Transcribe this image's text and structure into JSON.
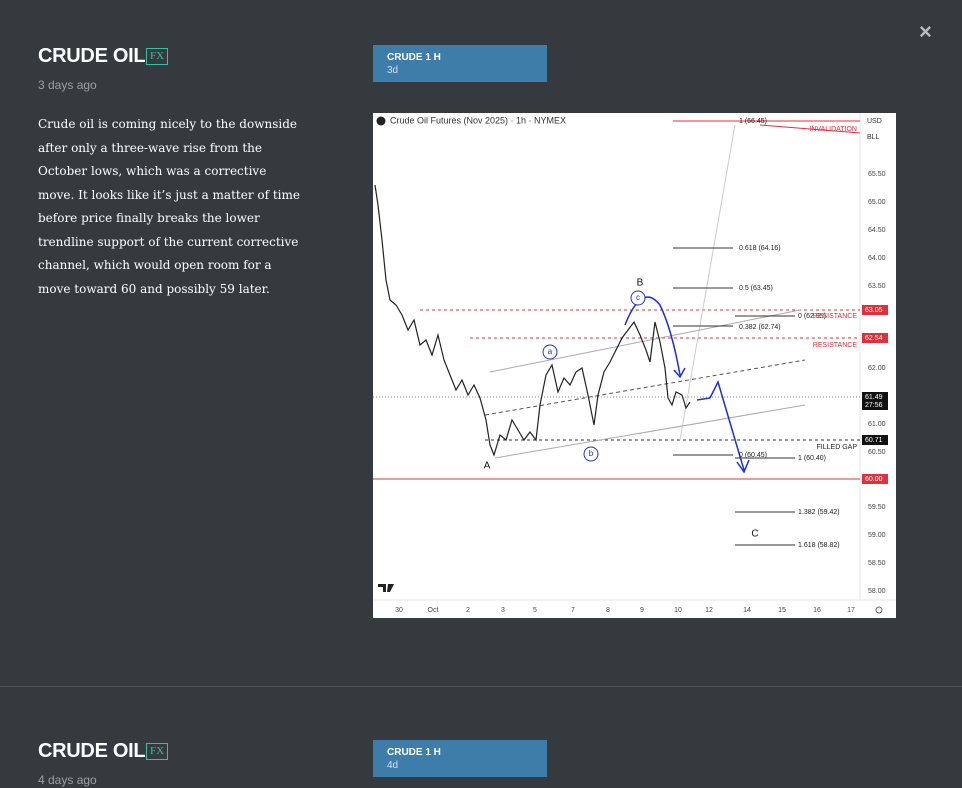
{
  "close": "×",
  "posts": [
    {
      "title": "CRUDE OIL",
      "badge": "FX",
      "time": "3 days ago",
      "body": "Crude oil is coming nicely to the downside after only a three-wave rise from the October lows, which was a corrective move. It looks like it’s just a matter of time before price finally breaks the lower trendline support of the current corrective channel, which would open room for a move toward 60 and possibly 59 later.",
      "tab": {
        "title": "CRUDE 1 H",
        "sub": "3d"
      },
      "chart": {
        "header": "Crude Oil Futures (Nov 2025) · 1h · NYMEX",
        "currency": "USD",
        "unit": "BLL",
        "price_ticks": [
          "65.50",
          "65.00",
          "64.50",
          "64.00",
          "63.50",
          "62.00",
          "61.00",
          "60.50",
          "59.50",
          "59.00",
          "58.50",
          "58.00"
        ],
        "date_ticks": [
          "30",
          "Oct",
          "2",
          "3",
          "5",
          "7",
          "8",
          "9",
          "10",
          "12",
          "14",
          "15",
          "16",
          "17"
        ],
        "fib_labels": [
          "1 (66.45)",
          "0.618 (64.16)",
          "0.5 (63.45)",
          "0 (62.95)",
          "0.382 (62.74)",
          "0 (60.45)",
          "1 (60.40)",
          "1.382 (59.42)",
          "1.618 (58.82)"
        ],
        "annotations": [
          "INVALIDATION",
          "RESISTANCE",
          "RESISTANCE",
          "FILLED GAP"
        ],
        "waves": [
          "A",
          "B",
          "C",
          "a",
          "b",
          "c"
        ],
        "price_tags": [
          "63.05",
          "62.54",
          "61.49",
          "27:56",
          "60.71",
          "60.00"
        ]
      }
    },
    {
      "title": "CRUDE OIL",
      "badge": "FX",
      "time": "4 days ago",
      "tab": {
        "title": "CRUDE 1 H",
        "sub": "4d"
      }
    }
  ]
}
